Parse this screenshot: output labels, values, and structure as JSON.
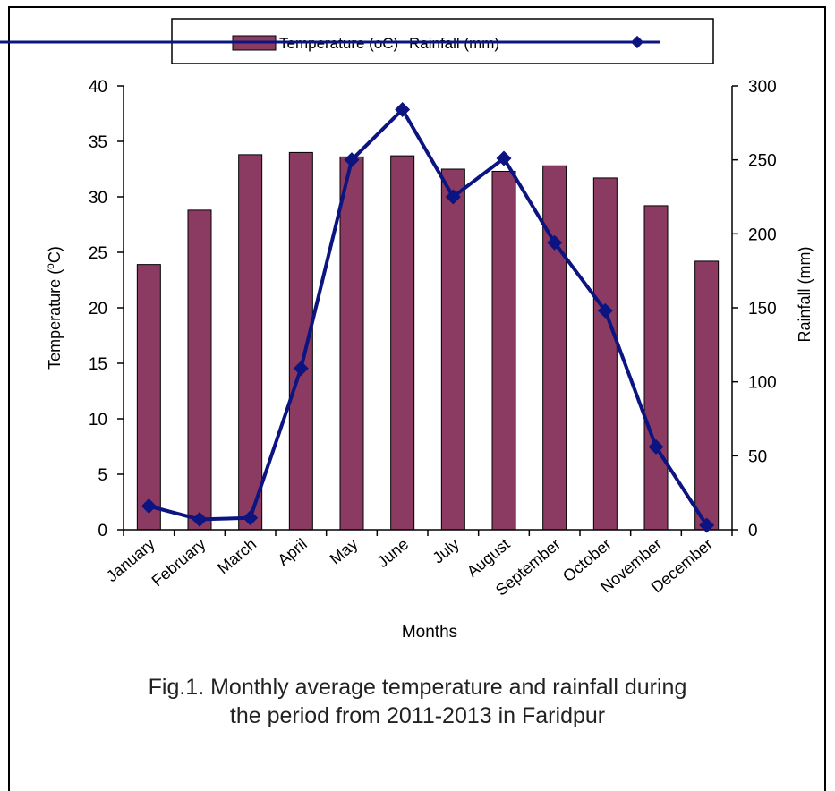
{
  "chart_data": {
    "type": "bar+line",
    "categories": [
      "January",
      "February",
      "March",
      "April",
      "May",
      "June",
      "July",
      "August",
      "September",
      "October",
      "November",
      "December"
    ],
    "series": [
      {
        "name": "Temperature (oC)",
        "kind": "bar",
        "axis": "left",
        "values": [
          23.9,
          28.8,
          33.8,
          34.0,
          33.6,
          33.7,
          32.5,
          32.3,
          32.8,
          31.7,
          29.2,
          24.2
        ]
      },
      {
        "name": "Rainfall (mm)",
        "kind": "line",
        "axis": "right",
        "values": [
          16,
          7,
          8,
          109,
          250,
          284,
          225,
          251,
          194,
          148,
          56,
          3
        ]
      }
    ],
    "xlabel": "Months",
    "ylabel_left": "Temperature (",
    "ylabel_left_sup": "o",
    "ylabel_left_end": "C)",
    "ylabel_right": "Rainfall (mm)",
    "ylim_left": [
      0,
      40
    ],
    "yticks_left": [
      0,
      5,
      10,
      15,
      20,
      25,
      30,
      35,
      40
    ],
    "ylim_right": [
      0,
      300
    ],
    "yticks_right": [
      0,
      50,
      100,
      150,
      200,
      250,
      300
    ],
    "grid": false,
    "legend": "top",
    "colors": {
      "bar": "#8b3a62",
      "bar_edge": "#000000",
      "line": "#0b1480"
    }
  },
  "caption_line1": "Fig.1. Monthly average temperature and rainfall during",
  "caption_line2": "the period from 2011-2013 in Faridpur"
}
